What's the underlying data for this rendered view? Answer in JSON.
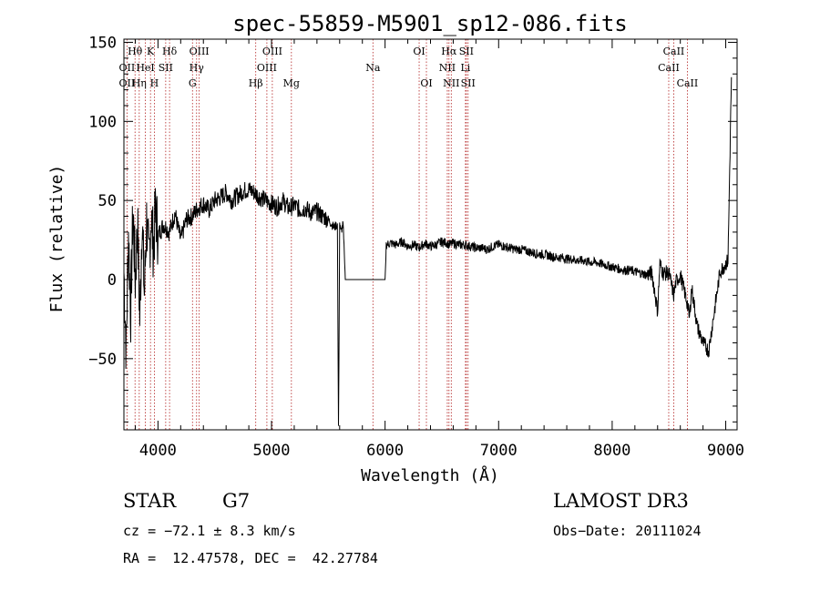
{
  "chart_data": {
    "type": "line",
    "title": "spec-55859-M5901_sp12-086.fits",
    "xlabel": "Wavelength (Å)",
    "ylabel": "Flux (relative)",
    "xlim": [
      3700,
      9100
    ],
    "ylim": [
      -95,
      152
    ],
    "xticks": [
      4000,
      5000,
      6000,
      7000,
      8000,
      9000
    ],
    "yticks": [
      -50,
      0,
      50,
      100,
      150
    ],
    "grid": false,
    "series": [
      {
        "x": [
          3700,
          3720,
          3740,
          3760,
          3780,
          3800,
          3820,
          3840,
          3860,
          3880,
          3900,
          3920,
          3940,
          3960,
          3980,
          4000,
          4050,
          4100,
          4150,
          4200,
          4250,
          4300,
          4350,
          4400,
          4450,
          4500,
          4550,
          4600,
          4650,
          4700,
          4750,
          4800,
          4850,
          4900,
          4950,
          5000,
          5050,
          5100,
          5150,
          5200,
          5250,
          5300,
          5350,
          5400,
          5450,
          5500,
          5550,
          5580,
          5590,
          5600,
          5610,
          5630,
          5650,
          5680,
          5700,
          5750,
          5800,
          5850,
          5900,
          5950,
          6000,
          6010,
          6050,
          6100,
          6150,
          6200,
          6250,
          6300,
          6350,
          6400,
          6450,
          6500,
          6550,
          6563,
          6600,
          6650,
          6700,
          6750,
          6800,
          6850,
          6900,
          6950,
          7000,
          7050,
          7100,
          7150,
          7200,
          7250,
          7300,
          7350,
          7400,
          7450,
          7500,
          7550,
          7600,
          7650,
          7700,
          7750,
          7800,
          7850,
          7900,
          7950,
          8000,
          8050,
          8100,
          8150,
          8200,
          8250,
          8300,
          8350,
          8400,
          8420,
          8450,
          8500,
          8542,
          8560,
          8600,
          8662,
          8680,
          8700,
          8750,
          8800,
          8850,
          8900,
          8950,
          9000,
          9020,
          9050
        ],
        "y": [
          5,
          -45,
          30,
          -20,
          45,
          0,
          35,
          -25,
          40,
          -10,
          38,
          10,
          42,
          20,
          45,
          28,
          35,
          30,
          42,
          25,
          38,
          40,
          45,
          48,
          44,
          50,
          52,
          55,
          50,
          53,
          56,
          57,
          55,
          52,
          50,
          48,
          46,
          50,
          45,
          47,
          44,
          45,
          42,
          43,
          40,
          38,
          33,
          35,
          -95,
          36,
          30,
          35,
          0,
          0,
          0,
          0,
          0,
          0,
          0,
          0,
          0,
          22,
          23,
          22,
          24,
          21,
          22,
          20,
          23,
          21,
          22,
          24,
          23,
          22,
          23,
          22,
          22,
          21,
          20,
          20,
          19,
          21,
          22,
          21,
          20,
          19,
          19,
          18,
          17,
          16,
          16,
          15,
          14,
          14,
          13,
          13,
          12,
          12,
          11,
          11,
          10,
          9,
          8,
          7,
          6,
          6,
          5,
          4,
          3,
          4,
          -20,
          10,
          4,
          4,
          -10,
          -2,
          3,
          -15,
          -25,
          -5,
          -30,
          -40,
          -45,
          -20,
          5,
          10,
          12,
          128
        ]
      }
    ],
    "annotations": [
      {
        "text": "Hθ",
        "x": 3798,
        "row": 1
      },
      {
        "text": "OII",
        "x": 3727,
        "row": 2
      },
      {
        "text": "OII",
        "x": 3727,
        "row": 3
      },
      {
        "text": "Hη",
        "x": 3835,
        "row": 3
      },
      {
        "text": "HeI",
        "x": 3889,
        "row": 2
      },
      {
        "text": "K",
        "x": 3934,
        "row": 1
      },
      {
        "text": "H",
        "x": 3968,
        "row": 3
      },
      {
        "text": "SII",
        "x": 4068,
        "row": 2
      },
      {
        "text": "Hδ",
        "x": 4102,
        "row": 1
      },
      {
        "text": "OIII",
        "x": 4363,
        "row": 1
      },
      {
        "text": "Hγ",
        "x": 4340,
        "row": 2
      },
      {
        "text": "G",
        "x": 4304,
        "row": 3
      },
      {
        "text": "Hβ",
        "x": 4861,
        "row": 3
      },
      {
        "text": "OIII",
        "x": 5007,
        "row": 1
      },
      {
        "text": "OIII",
        "x": 4959,
        "row": 2
      },
      {
        "text": "Mg",
        "x": 5175,
        "row": 3
      },
      {
        "text": "Na",
        "x": 5893,
        "row": 2
      },
      {
        "text": "OI",
        "x": 6300,
        "row": 1
      },
      {
        "text": "OI",
        "x": 6364,
        "row": 3
      },
      {
        "text": "Hα",
        "x": 6563,
        "row": 1
      },
      {
        "text": "SII",
        "x": 6716,
        "row": 1
      },
      {
        "text": "NII",
        "x": 6548,
        "row": 2
      },
      {
        "text": "Li",
        "x": 6708,
        "row": 2
      },
      {
        "text": "NII",
        "x": 6583,
        "row": 3
      },
      {
        "text": "SII",
        "x": 6731,
        "row": 3
      },
      {
        "text": "CaII",
        "x": 8542,
        "row": 1
      },
      {
        "text": "CaII",
        "x": 8498,
        "row": 2
      },
      {
        "text": "CaII",
        "x": 8662,
        "row": 3
      }
    ]
  },
  "info": {
    "class_label": "STAR",
    "subclass": "G7",
    "survey": "LAMOST DR3",
    "cz": "cz = −72.1 ± 8.3 km/s",
    "obs_date": "Obs−Date: 20111024",
    "coords": "RA =  12.47578, DEC =  42.27784"
  }
}
